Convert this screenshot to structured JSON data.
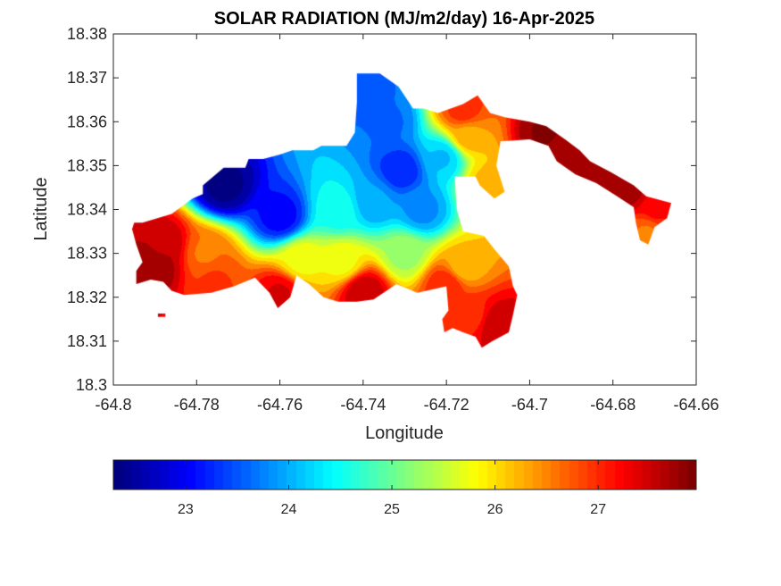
{
  "chart_data": {
    "type": "heatmap",
    "title": "SOLAR RADIATION (MJ/m2/day) 16-Apr-2025",
    "xlabel": "Longitude",
    "ylabel": "Latitude",
    "xlim": [
      -64.8,
      -64.66
    ],
    "ylim": [
      18.3,
      18.38
    ],
    "x_ticks": [
      -64.8,
      -64.78,
      -64.76,
      -64.74,
      -64.72,
      -64.7,
      -64.68,
      -64.66
    ],
    "x_tick_labels": [
      "-64.8",
      "-64.78",
      "-64.76",
      "-64.74",
      "-64.72",
      "-64.7",
      "-64.68",
      "-64.66"
    ],
    "y_ticks": [
      18.3,
      18.31,
      18.32,
      18.33,
      18.34,
      18.35,
      18.36,
      18.37,
      18.38
    ],
    "y_tick_labels": [
      "18.3",
      "18.31",
      "18.32",
      "18.33",
      "18.34",
      "18.35",
      "18.36",
      "18.37",
      "18.38"
    ],
    "grid": false,
    "colormap": "jet",
    "colorbar": {
      "orientation": "horizontal",
      "range": [
        22.3,
        27.95
      ],
      "ticks": [
        23,
        24,
        25,
        26,
        27
      ],
      "tick_labels": [
        "23",
        "24",
        "25",
        "26",
        "27"
      ]
    },
    "field": {
      "base_value": 25.0,
      "land_outline": [
        [
          -64.793,
          18.337
        ],
        [
          -64.786,
          18.339
        ],
        [
          -64.781,
          18.3425
        ],
        [
          -64.7785,
          18.3435
        ],
        [
          -64.7785,
          18.3455
        ],
        [
          -64.7735,
          18.3495
        ],
        [
          -64.7683,
          18.3495
        ],
        [
          -64.7675,
          18.3515
        ],
        [
          -64.764,
          18.3515
        ],
        [
          -64.76,
          18.3525
        ],
        [
          -64.757,
          18.3535
        ],
        [
          -64.752,
          18.3535
        ],
        [
          -64.75,
          18.3545
        ],
        [
          -64.744,
          18.3545
        ],
        [
          -64.742,
          18.3575
        ],
        [
          -64.7415,
          18.3645
        ],
        [
          -64.7415,
          18.371
        ],
        [
          -64.736,
          18.371
        ],
        [
          -64.7315,
          18.368
        ],
        [
          -64.728,
          18.363
        ],
        [
          -64.7255,
          18.363
        ],
        [
          -64.722,
          18.362
        ],
        [
          -64.716,
          18.364
        ],
        [
          -64.7125,
          18.366
        ],
        [
          -64.7095,
          18.362
        ],
        [
          -64.706,
          18.361
        ],
        [
          -64.7,
          18.36
        ],
        [
          -64.696,
          18.359
        ],
        [
          -64.6915,
          18.356
        ],
        [
          -64.688,
          18.3535
        ],
        [
          -64.6855,
          18.351
        ],
        [
          -64.6805,
          18.3485
        ],
        [
          -64.675,
          18.3455
        ],
        [
          -64.672,
          18.343
        ],
        [
          -64.666,
          18.3415
        ],
        [
          -64.667,
          18.338
        ],
        [
          -64.67,
          18.336
        ],
        [
          -64.6715,
          18.332
        ],
        [
          -64.6735,
          18.333
        ],
        [
          -64.6745,
          18.337
        ],
        [
          -64.675,
          18.3405
        ],
        [
          -64.679,
          18.343
        ],
        [
          -64.684,
          18.346
        ],
        [
          -64.689,
          18.348
        ],
        [
          -64.6935,
          18.351
        ],
        [
          -64.6955,
          18.3545
        ],
        [
          -64.7,
          18.356
        ],
        [
          -64.707,
          18.3555
        ],
        [
          -64.708,
          18.35
        ],
        [
          -64.706,
          18.344
        ],
        [
          -64.7085,
          18.3425
        ],
        [
          -64.712,
          18.3455
        ],
        [
          -64.713,
          18.3475
        ],
        [
          -64.718,
          18.3475
        ],
        [
          -64.7175,
          18.34
        ],
        [
          -64.716,
          18.335
        ],
        [
          -64.711,
          18.334
        ],
        [
          -64.7085,
          18.331
        ],
        [
          -64.705,
          18.327
        ],
        [
          -64.704,
          18.3225
        ],
        [
          -64.703,
          18.3205
        ],
        [
          -64.704,
          18.316
        ],
        [
          -64.705,
          18.312
        ],
        [
          -64.709,
          18.31
        ],
        [
          -64.7115,
          18.3085
        ],
        [
          -64.713,
          18.311
        ],
        [
          -64.716,
          18.312
        ],
        [
          -64.7185,
          18.313
        ],
        [
          -64.7205,
          18.312
        ],
        [
          -64.721,
          18.315
        ],
        [
          -64.7195,
          18.317
        ],
        [
          -64.72,
          18.3225
        ],
        [
          -64.727,
          18.321
        ],
        [
          -64.732,
          18.323
        ],
        [
          -64.7375,
          18.3195
        ],
        [
          -64.7415,
          18.319
        ],
        [
          -64.746,
          18.319
        ],
        [
          -64.7495,
          18.32
        ],
        [
          -64.753,
          18.323
        ],
        [
          -64.756,
          18.325
        ],
        [
          -64.7575,
          18.32
        ],
        [
          -64.7605,
          18.3175
        ],
        [
          -64.7625,
          18.321
        ],
        [
          -64.766,
          18.3245
        ],
        [
          -64.771,
          18.3225
        ],
        [
          -64.7765,
          18.321
        ],
        [
          -64.783,
          18.3205
        ],
        [
          -64.786,
          18.3215
        ],
        [
          -64.788,
          18.3235
        ],
        [
          -64.791,
          18.324
        ],
        [
          -64.7945,
          18.323
        ],
        [
          -64.7945,
          18.326
        ],
        [
          -64.793,
          18.328
        ],
        [
          -64.7945,
          18.332
        ],
        [
          -64.7955,
          18.3355
        ],
        [
          -64.795,
          18.337
        ]
      ],
      "islet": [
        [
          -64.7893,
          18.3155
        ],
        [
          -64.7875,
          18.3155
        ],
        [
          -64.7875,
          18.3163
        ],
        [
          -64.7893,
          18.3163
        ]
      ],
      "anomalies": [
        {
          "lon": -64.7735,
          "lat": 18.3455,
          "value": 22.3
        },
        {
          "lon": -64.76,
          "lat": 18.3385,
          "value": 23.0
        },
        {
          "lon": -64.731,
          "lat": 18.349,
          "value": 23.2
        },
        {
          "lon": -64.7375,
          "lat": 18.342,
          "value": 23.9
        },
        {
          "lon": -64.734,
          "lat": 18.36,
          "value": 23.6
        },
        {
          "lon": -64.739,
          "lat": 18.367,
          "value": 23.5
        },
        {
          "lon": -64.726,
          "lat": 18.34,
          "value": 23.8
        },
        {
          "lon": -64.721,
          "lat": 18.352,
          "value": 24.1
        },
        {
          "lon": -64.746,
          "lat": 18.34,
          "value": 24.5
        },
        {
          "lon": -64.715,
          "lat": 18.357,
          "value": 26.3
        },
        {
          "lon": -64.716,
          "lat": 18.3625,
          "value": 27.0
        },
        {
          "lon": -64.71,
          "lat": 18.346,
          "value": 26.2
        },
        {
          "lon": -64.73,
          "lat": 18.33,
          "value": 25.3
        },
        {
          "lon": -64.745,
          "lat": 18.328,
          "value": 25.8
        },
        {
          "lon": -64.755,
          "lat": 18.3285,
          "value": 25.8
        },
        {
          "lon": -64.778,
          "lat": 18.33,
          "value": 26.6
        },
        {
          "lon": -64.788,
          "lat": 18.332,
          "value": 27.6
        },
        {
          "lon": -64.79,
          "lat": 18.327,
          "value": 27.8
        },
        {
          "lon": -64.776,
          "lat": 18.324,
          "value": 26.9
        },
        {
          "lon": -64.76,
          "lat": 18.321,
          "value": 27.4
        },
        {
          "lon": -64.74,
          "lat": 18.3215,
          "value": 27.6
        },
        {
          "lon": -64.72,
          "lat": 18.323,
          "value": 27.1
        },
        {
          "lon": -64.714,
          "lat": 18.316,
          "value": 27.0
        },
        {
          "lon": -64.708,
          "lat": 18.314,
          "value": 27.6
        },
        {
          "lon": -64.716,
          "lat": 18.327,
          "value": 26.2
        },
        {
          "lon": -64.696,
          "lat": 18.3575,
          "value": 27.9
        },
        {
          "lon": -64.692,
          "lat": 18.3545,
          "value": 27.8
        },
        {
          "lon": -64.682,
          "lat": 18.348,
          "value": 27.8
        },
        {
          "lon": -64.676,
          "lat": 18.344,
          "value": 27.7
        },
        {
          "lon": -64.67,
          "lat": 18.34,
          "value": 27.2
        },
        {
          "lon": -64.672,
          "lat": 18.335,
          "value": 26.6
        }
      ]
    }
  }
}
